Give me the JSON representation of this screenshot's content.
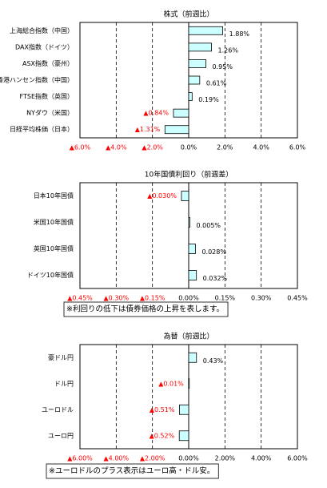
{
  "chart_data": [
    {
      "type": "hbar",
      "title": "株式（前週比）",
      "categories": [
        "上海総合指数（中国）",
        "DAX指数（ドイツ）",
        "ASX指数（豪州）",
        "香港ハンセン指数（中国）",
        "FTSE指数（英国）",
        "NYダウ（米国）",
        "日経平均株価（日本）"
      ],
      "values": [
        1.88,
        1.26,
        0.95,
        0.61,
        0.19,
        -0.84,
        -1.31
      ],
      "value_labels": [
        "1.88%",
        "1.26%",
        "0.95%",
        "0.61%",
        "0.19%",
        "▲0.84%",
        "▲1.31%"
      ],
      "color": "#ccffff",
      "xlim": [
        -6,
        6
      ],
      "xticks": [
        {
          "value": -6,
          "label": "▲6.0%"
        },
        {
          "value": -4,
          "label": "▲4.0%"
        },
        {
          "value": -2,
          "label": "▲2.0%"
        },
        {
          "value": 0,
          "label": "0.0%"
        },
        {
          "value": 2,
          "label": "2.0%"
        },
        {
          "value": 4,
          "label": "4.0%"
        },
        {
          "value": 6,
          "label": "6.0%"
        }
      ],
      "grid": true
    },
    {
      "type": "hbar",
      "title": "10年国債利回り（前週差）",
      "categories": [
        "日本10年国債",
        "米国10年国債",
        "英国10年国債",
        "ドイツ10年国債"
      ],
      "values": [
        -0.03,
        0.005,
        0.028,
        0.032
      ],
      "value_labels": [
        "▲0.030%",
        "0.005%",
        "0.028%",
        "0.032%"
      ],
      "color": "#ccffff",
      "xlim": [
        -0.45,
        0.45
      ],
      "xticks": [
        {
          "value": -0.45,
          "label": "▲0.45%"
        },
        {
          "value": -0.3,
          "label": "▲0.30%"
        },
        {
          "value": -0.15,
          "label": "▲0.15%"
        },
        {
          "value": 0,
          "label": "0.00%"
        },
        {
          "value": 0.15,
          "label": "0.15%"
        },
        {
          "value": 0.3,
          "label": "0.30%"
        },
        {
          "value": 0.45,
          "label": "0.45%"
        }
      ],
      "grid": true,
      "note": "※利回りの低下は債券価格の上昇を表します。"
    },
    {
      "type": "hbar",
      "title": "為替（前週比）",
      "categories": [
        "豪ドル円",
        "ドル円",
        "ユーロドル",
        "ユーロ円"
      ],
      "values": [
        0.43,
        -0.01,
        -0.51,
        -0.52
      ],
      "value_labels": [
        "0.43%",
        "▲0.01%",
        "▲0.51%",
        "▲0.52%"
      ],
      "color": "#ccffff",
      "xlim": [
        -6,
        6
      ],
      "xticks": [
        {
          "value": -6,
          "label": "▲6.00%"
        },
        {
          "value": -4,
          "label": "▲4.00%"
        },
        {
          "value": -2,
          "label": "▲2.00%"
        },
        {
          "value": 0,
          "label": "0.00%"
        },
        {
          "value": 2,
          "label": "2.00%"
        },
        {
          "value": 4,
          "label": "4.00%"
        },
        {
          "value": 6,
          "label": "6.00%"
        }
      ],
      "grid": true,
      "note": "※ユーロドルのプラス表示はユーロ高・ドル安。"
    }
  ]
}
